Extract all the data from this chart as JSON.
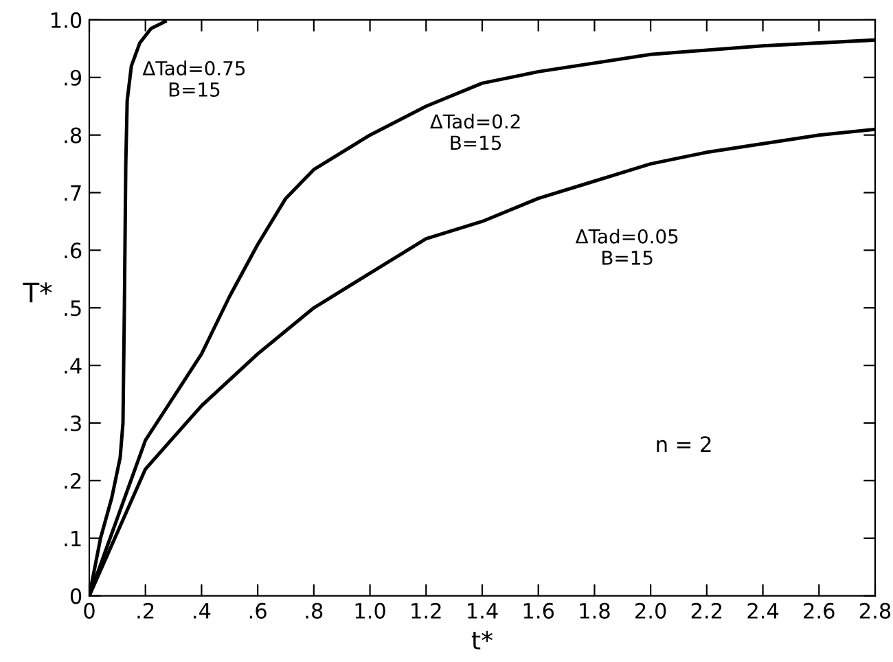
{
  "chart_data": {
    "type": "line",
    "xlabel": "t*",
    "ylabel": "T*",
    "xlim": [
      0,
      2.8
    ],
    "ylim": [
      0,
      1.0
    ],
    "xticks": [
      0,
      {
        "value": 0.2,
        "label": ".2"
      },
      {
        "value": 0.4,
        "label": ".4"
      },
      {
        "value": 0.6,
        "label": ".6"
      },
      {
        "value": 0.8,
        "label": ".8"
      },
      {
        "value": 1.0,
        "label": "1.0"
      },
      {
        "value": 1.2,
        "label": "1.2"
      },
      {
        "value": 1.4,
        "label": "1.4"
      },
      {
        "value": 1.6,
        "label": "1.6"
      },
      {
        "value": 1.8,
        "label": "1.8"
      },
      {
        "value": 2.0,
        "label": "2.0"
      },
      {
        "value": 2.2,
        "label": "2.2"
      },
      {
        "value": 2.4,
        "label": "2.4"
      },
      {
        "value": 2.6,
        "label": "2.6"
      },
      {
        "value": 2.8,
        "label": "2.8"
      }
    ],
    "yticks": [
      0,
      {
        "value": 0.1,
        "label": ".1"
      },
      {
        "value": 0.2,
        "label": ".2"
      },
      {
        "value": 0.3,
        "label": ".3"
      },
      {
        "value": 0.4,
        "label": ".4"
      },
      {
        "value": 0.5,
        "label": ".5"
      },
      {
        "value": 0.6,
        "label": ".6"
      },
      {
        "value": 0.7,
        "label": ".7"
      },
      {
        "value": 0.8,
        "label": ".8"
      },
      {
        "value": 0.9,
        "label": ".9"
      },
      {
        "value": 1.0,
        "label": "1.0"
      }
    ],
    "grid": false,
    "legend": false,
    "marker": "none",
    "line_style": "solid",
    "series": [
      {
        "name": "ΔTad=0.75\nB=15",
        "color": "#000000",
        "x": [
          0,
          0.04,
          0.08,
          0.11,
          0.12,
          0.125,
          0.13,
          0.135,
          0.15,
          0.18,
          0.22,
          0.27
        ],
        "values": [
          0,
          0.1,
          0.17,
          0.24,
          0.3,
          0.5,
          0.75,
          0.86,
          0.92,
          0.96,
          0.985,
          0.997
        ]
      },
      {
        "name": "ΔTad=0.2\nB=15",
        "color": "#000000",
        "x": [
          0,
          0.2,
          0.4,
          0.5,
          0.6,
          0.7,
          0.8,
          1.0,
          1.2,
          1.4,
          1.6,
          2.0,
          2.4,
          2.8
        ],
        "values": [
          0,
          0.27,
          0.42,
          0.52,
          0.61,
          0.69,
          0.74,
          0.8,
          0.85,
          0.89,
          0.91,
          0.94,
          0.955,
          0.965
        ]
      },
      {
        "name": "ΔTad=0.05\nB=15",
        "color": "#000000",
        "x": [
          0,
          0.2,
          0.4,
          0.6,
          0.8,
          1.0,
          1.2,
          1.4,
          1.6,
          1.8,
          2.0,
          2.2,
          2.4,
          2.6,
          2.8
        ],
        "values": [
          0,
          0.22,
          0.33,
          0.42,
          0.5,
          0.56,
          0.62,
          0.65,
          0.69,
          0.72,
          0.75,
          0.77,
          0.785,
          0.8,
          0.81
        ]
      }
    ],
    "annotations": [
      "n = 2"
    ]
  }
}
